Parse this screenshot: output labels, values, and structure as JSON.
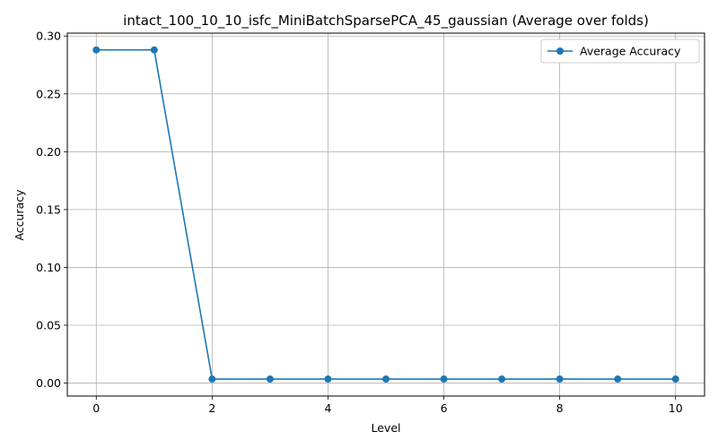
{
  "chart_data": {
    "type": "line",
    "title": "intact_100_10_10_isfc_MiniBatchSparsePCA_45_gaussian (Average over folds)",
    "xlabel": "Level",
    "ylabel": "Accuracy",
    "xlim": [
      -0.5,
      10.5
    ],
    "ylim": [
      -0.0112,
      0.3025
    ],
    "xticks": [
      0,
      2,
      4,
      6,
      8,
      10
    ],
    "yticks": [
      0.0,
      0.05,
      0.1,
      0.15,
      0.2,
      0.25,
      0.3
    ],
    "ytick_labels": [
      "0.00",
      "0.05",
      "0.10",
      "0.15",
      "0.20",
      "0.25",
      "0.30"
    ],
    "grid": true,
    "legend": "top-right",
    "series": [
      {
        "name": "Average Accuracy",
        "color": "#1f77b4",
        "marker": "circle",
        "x": [
          0,
          1,
          2,
          3,
          4,
          5,
          6,
          7,
          8,
          9,
          10
        ],
        "y": [
          0.288,
          0.288,
          0.0035,
          0.0035,
          0.0035,
          0.0035,
          0.0035,
          0.0035,
          0.0035,
          0.0035,
          0.0035
        ]
      }
    ]
  }
}
